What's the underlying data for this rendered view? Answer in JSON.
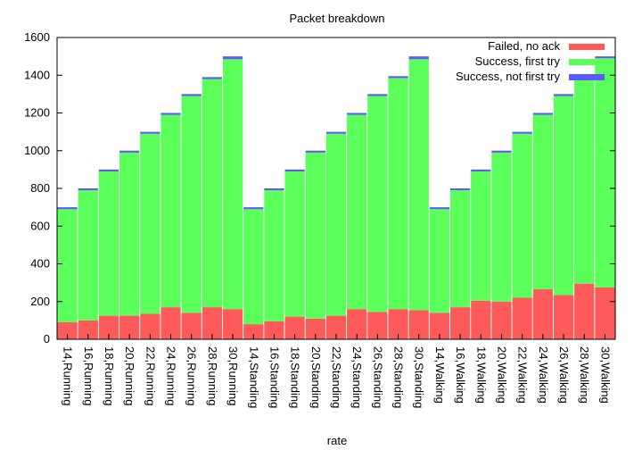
{
  "chart_data": {
    "type": "bar",
    "stacked": true,
    "title": "Packet breakdown",
    "xlabel": "rate",
    "ylabel": "",
    "ylim": [
      0,
      1600
    ],
    "yticks": [
      0,
      200,
      400,
      600,
      800,
      1000,
      1200,
      1400,
      1600
    ],
    "grid": false,
    "legend_position": "top-right",
    "categories": [
      "14,Running",
      "16,Running",
      "18,Running",
      "20,Running",
      "22,Running",
      "24,Running",
      "26,Running",
      "28,Running",
      "30,Running",
      "14,Standing",
      "16,Standing",
      "18,Standing",
      "20,Standing",
      "22,Standing",
      "24,Standing",
      "26,Standing",
      "28,Standing",
      "30,Standing",
      "14,Walking",
      "16,Walking",
      "18,Walking",
      "20,Walking",
      "22,Walking",
      "24,Walking",
      "26,Walking",
      "28,Walking",
      "30,Walking"
    ],
    "series": [
      {
        "name": "Failed, no ack",
        "color": "#ff5a5a",
        "values": [
          90,
          100,
          125,
          125,
          135,
          170,
          140,
          170,
          160,
          80,
          95,
          120,
          110,
          125,
          160,
          145,
          160,
          155,
          140,
          170,
          205,
          200,
          220,
          265,
          235,
          295,
          275
        ]
      },
      {
        "name": "Success, first try",
        "color": "#5aff5a",
        "values": [
          600,
          690,
          765,
          865,
          955,
          1020,
          1150,
          1210,
          1325,
          610,
          695,
          770,
          880,
          965,
          1030,
          1145,
          1225,
          1330,
          550,
          620,
          685,
          790,
          870,
          925,
          1055,
          1095,
          1215
        ]
      },
      {
        "name": "Success, not first try",
        "color": "#5a5aff",
        "values": [
          10,
          10,
          10,
          10,
          10,
          10,
          10,
          10,
          15,
          10,
          10,
          10,
          10,
          10,
          10,
          10,
          10,
          15,
          10,
          10,
          10,
          10,
          10,
          10,
          10,
          10,
          10
        ]
      }
    ]
  }
}
